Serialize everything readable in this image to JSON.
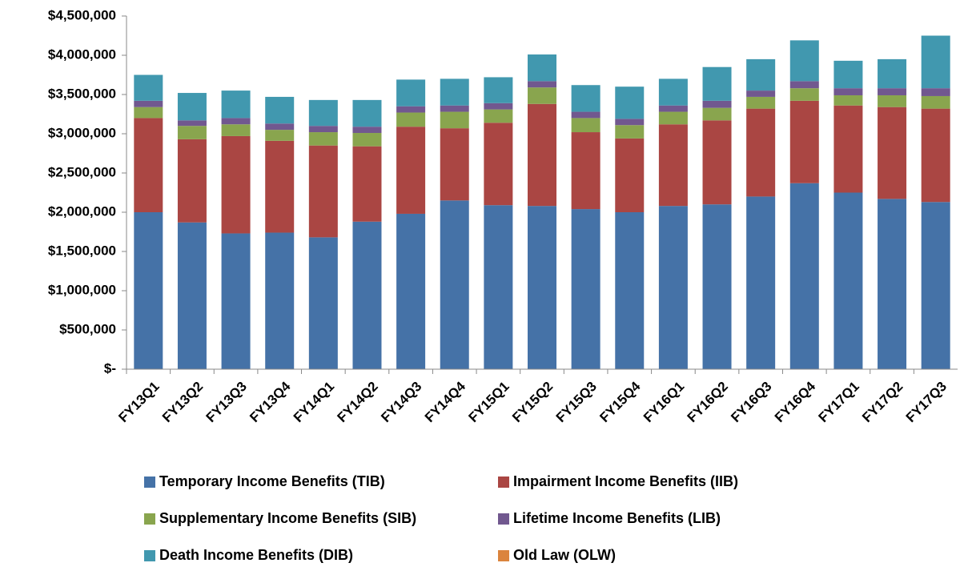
{
  "chart_data": {
    "type": "stacked_bar",
    "categories": [
      "FY13Q1",
      "FY13Q2",
      "FY13Q3",
      "FY13Q4",
      "FY14Q1",
      "FY14Q2",
      "FY14Q3",
      "FY14Q4",
      "FY15Q1",
      "FY15Q2",
      "FY15Q3",
      "FY15Q4",
      "FY16Q1",
      "FY16Q2",
      "FY16Q3",
      "FY16Q4",
      "FY17Q1",
      "FY17Q2",
      "FY17Q3"
    ],
    "series": [
      {
        "name": "Temporary Income Benefits (TIB)",
        "color": "#4572a7",
        "values": [
          2000000,
          1870000,
          1730000,
          1740000,
          1680000,
          1880000,
          1980000,
          2150000,
          2090000,
          2080000,
          2040000,
          2000000,
          2080000,
          2100000,
          2200000,
          2370000,
          2250000,
          2170000,
          2130000
        ]
      },
      {
        "name": "Impairment Income Benefits (IIB)",
        "color": "#aa4643",
        "values": [
          1200000,
          1060000,
          1240000,
          1170000,
          1170000,
          960000,
          1110000,
          920000,
          1050000,
          1300000,
          980000,
          940000,
          1040000,
          1070000,
          1120000,
          1050000,
          1110000,
          1170000,
          1190000
        ]
      },
      {
        "name": "Supplementary Income Benefits (SIB)",
        "color": "#89a54e",
        "values": [
          140000,
          170000,
          150000,
          140000,
          170000,
          170000,
          180000,
          210000,
          170000,
          210000,
          180000,
          170000,
          160000,
          160000,
          150000,
          160000,
          130000,
          150000,
          160000
        ]
      },
      {
        "name": "Lifetime Income Benefits (LIB)",
        "color": "#71588f",
        "values": [
          80000,
          70000,
          80000,
          80000,
          80000,
          80000,
          80000,
          80000,
          80000,
          80000,
          80000,
          80000,
          80000,
          90000,
          80000,
          90000,
          90000,
          90000,
          100000
        ]
      },
      {
        "name": "Death Income Benefits (DIB)",
        "color": "#4198af",
        "values": [
          330000,
          350000,
          350000,
          340000,
          330000,
          340000,
          340000,
          340000,
          330000,
          340000,
          340000,
          410000,
          340000,
          430000,
          400000,
          520000,
          350000,
          370000,
          670000
        ]
      },
      {
        "name": "Old Law (OLW)",
        "color": "#db843d",
        "values": [
          0,
          0,
          0,
          0,
          0,
          0,
          0,
          0,
          0,
          0,
          0,
          0,
          0,
          0,
          0,
          0,
          0,
          0,
          0
        ]
      }
    ],
    "ylim": [
      0,
      4500000
    ],
    "yticks": [
      {
        "value": 0,
        "label": "$-"
      },
      {
        "value": 500000,
        "label": "$500,000"
      },
      {
        "value": 1000000,
        "label": "$1,000,000"
      },
      {
        "value": 1500000,
        "label": "$1,500,000"
      },
      {
        "value": 2000000,
        "label": "$2,000,000"
      },
      {
        "value": 2500000,
        "label": "$2,500,000"
      },
      {
        "value": 3000000,
        "label": "$3,000,000"
      },
      {
        "value": 3500000,
        "label": "$3,500,000"
      },
      {
        "value": 4000000,
        "label": "$4,000,000"
      },
      {
        "value": 4500000,
        "label": "$4,500,000"
      }
    ],
    "legend": "bottom"
  }
}
